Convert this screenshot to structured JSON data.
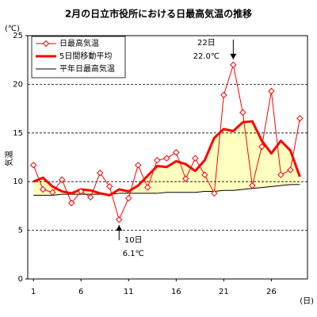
{
  "chart_data": {
    "type": "line",
    "title": "2月の日立市役所における日最高気温の推移",
    "y_unit": "(℃)",
    "y_label": "気温",
    "x_unit": "(日)",
    "x": [
      1,
      2,
      3,
      4,
      5,
      6,
      7,
      8,
      9,
      10,
      11,
      12,
      13,
      14,
      15,
      16,
      17,
      18,
      19,
      20,
      21,
      22,
      23,
      24,
      25,
      26,
      27,
      28,
      29
    ],
    "xlim": [
      0.4,
      29.8
    ],
    "xticks": [
      1,
      6,
      11,
      16,
      21,
      26
    ],
    "ylim": [
      0,
      25
    ],
    "yticks": [
      0,
      5,
      10,
      15,
      20,
      25
    ],
    "grid": true,
    "legend": "upper left",
    "fill_color": "#ffffc0",
    "series": [
      {
        "name": "日最高気温",
        "color": "#ff0000",
        "width": 1,
        "marker": "diamond",
        "values": [
          11.7,
          9.2,
          8.9,
          10.2,
          7.8,
          9.0,
          8.4,
          10.9,
          9.5,
          6.1,
          8.3,
          11.7,
          9.4,
          12.2,
          12.4,
          13.0,
          10.3,
          12.4,
          10.7,
          8.8,
          18.9,
          22.0,
          17.1,
          9.6,
          13.6,
          19.3,
          10.7,
          11.2,
          16.5
        ]
      },
      {
        "name": "5日間移動平均",
        "color": "#ff0000",
        "width": 3,
        "values": [
          10.0,
          10.4,
          9.5,
          9.0,
          8.8,
          9.2,
          9.1,
          8.8,
          8.6,
          9.2,
          9.0,
          9.6,
          10.6,
          11.6,
          11.5,
          12.1,
          11.8,
          11.1,
          12.2,
          14.5,
          15.4,
          15.2,
          16.1,
          16.2,
          14.2,
          12.9,
          14.2,
          13.2,
          10.5
        ]
      },
      {
        "name": "平年日最高気温",
        "color": "#000000",
        "width": 1,
        "values": [
          8.6,
          8.6,
          8.6,
          8.7,
          8.7,
          8.7,
          8.7,
          8.7,
          8.7,
          8.8,
          8.8,
          8.8,
          8.8,
          8.8,
          8.9,
          8.9,
          8.9,
          8.9,
          9.0,
          9.0,
          9.1,
          9.1,
          9.2,
          9.3,
          9.4,
          9.5,
          9.6,
          9.7,
          9.7
        ]
      }
    ],
    "annotations": [
      {
        "x": 22,
        "y": 22.0,
        "lines": [
          "22日",
          "22.0℃"
        ],
        "position": "above"
      },
      {
        "x": 10,
        "y": 6.1,
        "lines": [
          "10日",
          "6.1℃"
        ],
        "position": "below"
      }
    ]
  }
}
